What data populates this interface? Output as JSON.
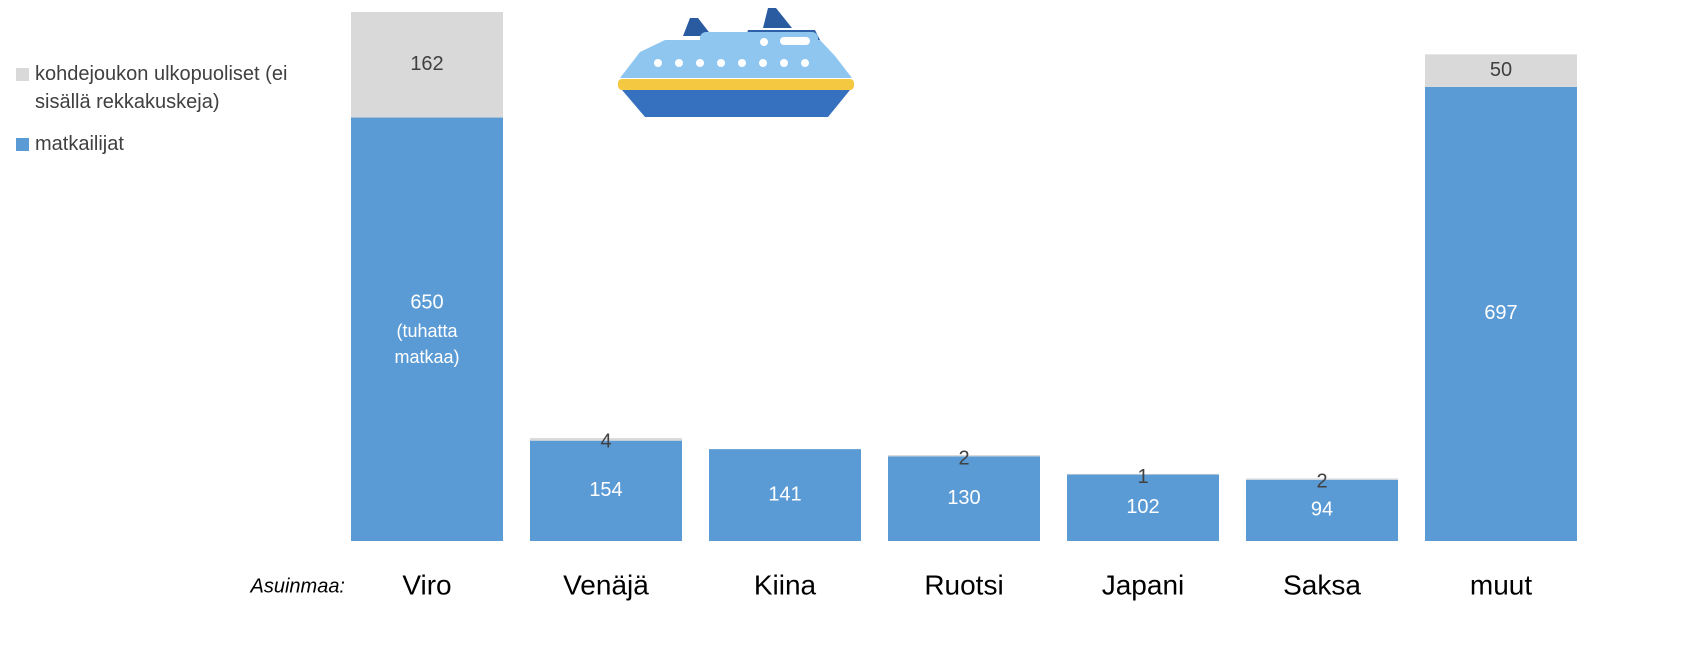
{
  "chart_data": {
    "type": "stacked_bar",
    "x_label": "Asuinmaa:",
    "categories": [
      "Viro",
      "Venäjä",
      "Kiina",
      "Ruotsi",
      "Japani",
      "Saksa",
      "muut"
    ],
    "series": [
      {
        "name": "matkailijat",
        "color": "#5b9bd5",
        "values": [
          650,
          154,
          141,
          130,
          102,
          94,
          697
        ]
      },
      {
        "name": "kohdejoukon ulkopuoliset (ei sisällä rekkakuskeja)",
        "color": "#d9d9d9",
        "values": [
          162,
          4,
          null,
          2,
          1,
          2,
          50
        ]
      }
    ],
    "annotation": "(tuhatta matkaa)",
    "ylim": [
      0,
      812
    ]
  }
}
